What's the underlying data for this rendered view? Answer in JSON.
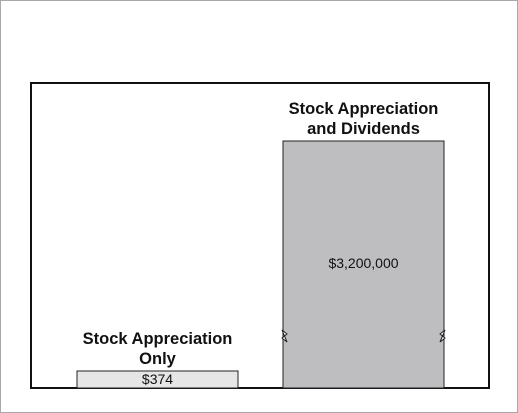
{
  "chart_data": {
    "type": "bar",
    "categories": [
      "Stock Appreciation Only",
      "Stock Appreciation and Dividends"
    ],
    "values": [
      374,
      3200000
    ],
    "value_labels": [
      "$374",
      "$3,200,000"
    ],
    "colors": [
      "#e6e6e6",
      "#bebec1"
    ]
  }
}
